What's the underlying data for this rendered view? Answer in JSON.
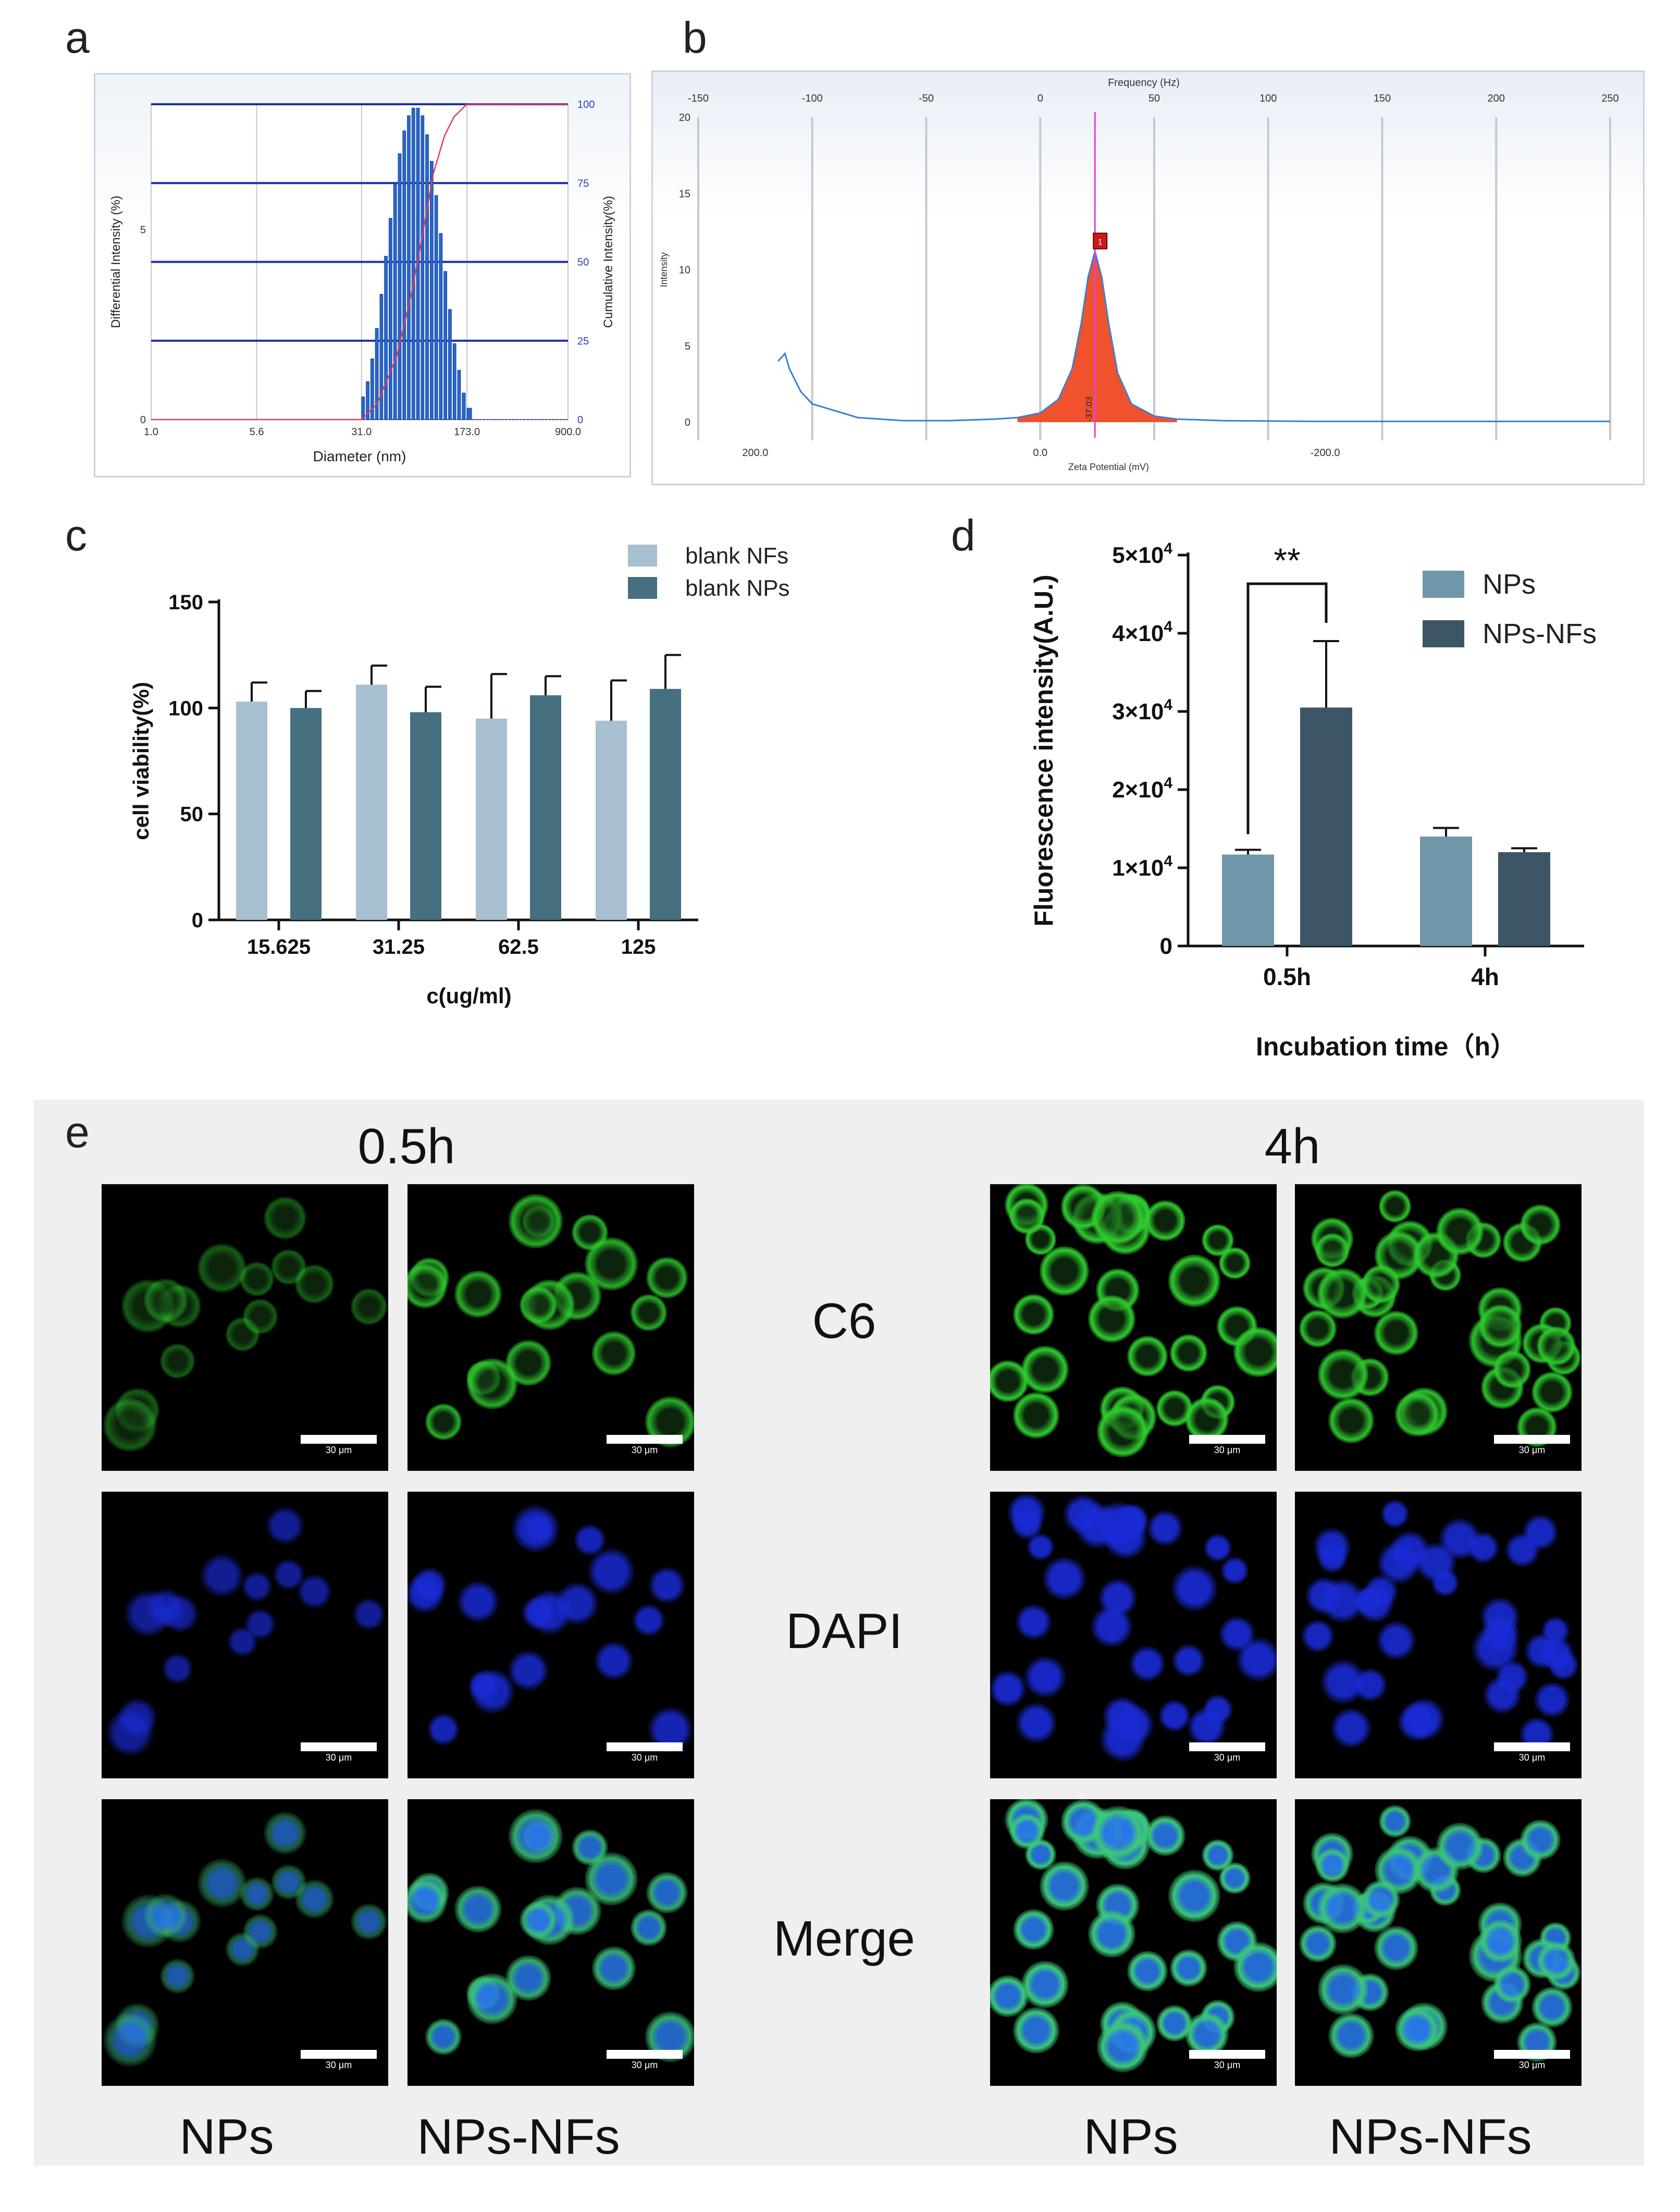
{
  "panels": {
    "a": "a",
    "b": "b",
    "c": "c",
    "d": "d",
    "e": "e"
  },
  "chart_data": [
    {
      "panel": "a",
      "type": "bar",
      "xlabel": "Diameter (nm)",
      "ylabel_left": "Differential Intensity (%)",
      "ylabel_right": "Cumulative Intensity(%)",
      "x_ticks": [
        "1.0",
        "5.6",
        "31.0",
        "173.0",
        "900.0"
      ],
      "y_left_ticks": [
        "0",
        "5"
      ],
      "y_right_ticks": [
        "0",
        "25",
        "50",
        "75",
        "100"
      ],
      "x_log_range": [
        1.0,
        900.0
      ],
      "y_left_range": [
        0,
        8.3
      ],
      "y_right_range": [
        0,
        100
      ],
      "bars_x": [
        31.0,
        33.4,
        36.0,
        38.8,
        41.8,
        45.0,
        48.5,
        52.3,
        56.3,
        60.7,
        65.4,
        70.4,
        75.9,
        81.8,
        88.1,
        94.9,
        102.3,
        110.2,
        118.7,
        127.9,
        137.8,
        148.5,
        160.0,
        173.0
      ],
      "bars_y": [
        0.6,
        1.0,
        1.6,
        2.4,
        3.3,
        4.3,
        5.3,
        6.2,
        7.0,
        7.6,
        8.0,
        8.2,
        8.2,
        8.0,
        7.5,
        6.8,
        5.9,
        4.9,
        3.9,
        2.9,
        2.0,
        1.3,
        0.7,
        0.3
      ],
      "cumulative_x": [
        1.0,
        31.0,
        40,
        55,
        70,
        85,
        100,
        120,
        140,
        173.0,
        900.0
      ],
      "cumulative_y": [
        0,
        0,
        5,
        20,
        40,
        60,
        78,
        90,
        96,
        100,
        100
      ]
    },
    {
      "panel": "b",
      "type": "area",
      "top_axis_label": "Frequency (Hz)",
      "top_ticks": [
        "-150",
        "-100",
        "-50",
        "0",
        "50",
        "100",
        "150",
        "200",
        "250"
      ],
      "xlabel": "Zeta Potential (mV)",
      "bottom_ticks": [
        "200.0",
        "0.0",
        "-200.0"
      ],
      "ylabel": "Intensity",
      "y_ticks": [
        "0",
        "5",
        "10",
        "15",
        "20"
      ],
      "y_range": [
        0,
        20
      ],
      "freq_range": [
        -150,
        250
      ],
      "peak_freq": 24,
      "peak_value": 11.2,
      "peak_annotation": "-37.03",
      "peak_marker": "1",
      "curve_freq": [
        -115,
        -112,
        -110,
        -105,
        -100,
        -80,
        -60,
        -40,
        -20,
        -10,
        0,
        8,
        14,
        18,
        21,
        24,
        27,
        30,
        34,
        40,
        50,
        60,
        80,
        120,
        180,
        250
      ],
      "curve_y": [
        4.0,
        4.5,
        3.5,
        2.0,
        1.2,
        0.3,
        0.1,
        0.1,
        0.2,
        0.3,
        0.6,
        1.5,
        3.5,
        6.5,
        9.5,
        11.2,
        9.5,
        6.5,
        3.2,
        1.2,
        0.4,
        0.2,
        0.1,
        0.05,
        0.05,
        0.05
      ]
    },
    {
      "panel": "c",
      "type": "bar",
      "xlabel": "c(ug/ml)",
      "ylabel": "cell viability(%)",
      "categories": [
        "15.625",
        "31.25",
        "62.5",
        "125"
      ],
      "y_ticks": [
        "0",
        "50",
        "100",
        "150"
      ],
      "ylim": [
        0,
        150
      ],
      "series": [
        {
          "name": "blank NFs",
          "color": "#a8bfcf",
          "values": [
            103,
            111,
            95,
            94
          ],
          "errors": [
            9,
            9,
            21,
            19
          ]
        },
        {
          "name": "blank NPs",
          "color": "#46707f",
          "values": [
            100,
            98,
            106,
            109
          ],
          "errors": [
            8,
            12,
            9,
            16
          ]
        }
      ]
    },
    {
      "panel": "d",
      "type": "bar",
      "xlabel": "Incubation time（h）",
      "ylabel": "Fluorescence intensity(A.U.)",
      "categories": [
        "0.5h",
        "4h"
      ],
      "y_ticks": [
        "0",
        "1×10",
        "2×10",
        "3×10",
        "4×10",
        "5×10"
      ],
      "y_tick_exp": "4",
      "ylim": [
        0,
        50000
      ],
      "significance": "**",
      "series": [
        {
          "name": "NPs",
          "color": "#6f97a9",
          "values": [
            11700,
            14000
          ],
          "errors": [
            600,
            1100
          ]
        },
        {
          "name": "NPs-NFs",
          "color": "#3c5666",
          "values": [
            30500,
            12000
          ],
          "errors": [
            8500,
            500
          ]
        }
      ]
    }
  ],
  "panel_e": {
    "time_labels": [
      "0.5h",
      "4h"
    ],
    "row_labels": [
      "C6",
      "DAPI",
      "Merge"
    ],
    "column_labels": [
      "NPs",
      "NPs-NFs",
      "NPs",
      "NPs-NFs"
    ],
    "scale_bar": "30 μm",
    "colors": {
      "c6": "#2ecc2e",
      "dapi": "#1a2bd6",
      "merge_nucleus": "#2a5fd6"
    }
  }
}
